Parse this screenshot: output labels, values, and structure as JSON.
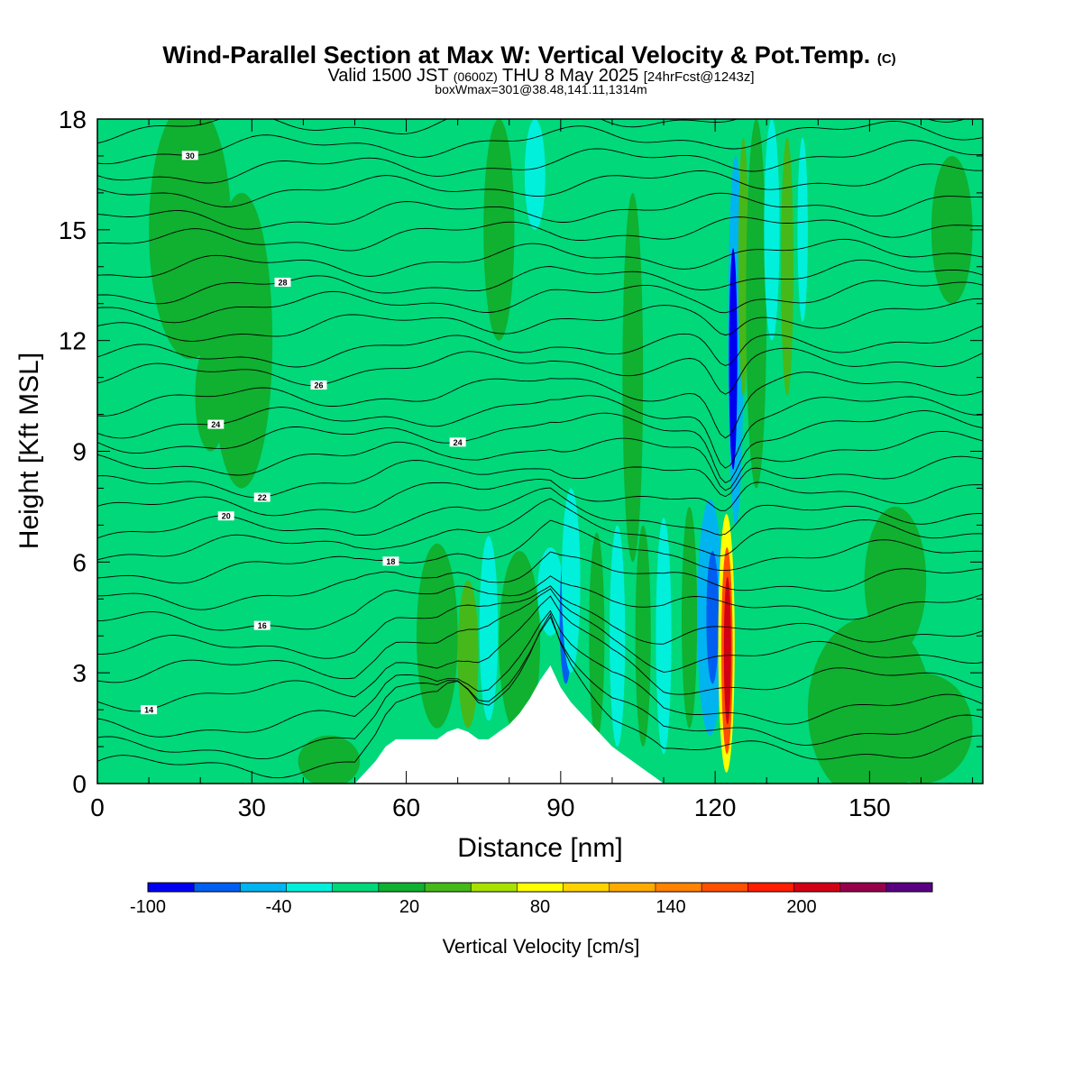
{
  "chart_data": {
    "type": "heatmap",
    "title": "Wind-Parallel Section at Max W: Vertical Velocity & Pot.Temp.",
    "title_mark": "(C)",
    "subtitle_parts": [
      "Valid 1500 JST",
      "(0600Z)",
      "THU 8 May 2025",
      "[24hrFcst@1243z]"
    ],
    "subtitle2": "boxWmax=301@38.48,141.11,1314m",
    "xlabel": "Distance [nm]",
    "ylabel": "Height [Kft MSL]",
    "xlim": [
      0,
      172
    ],
    "ylim": [
      0,
      18
    ],
    "x_ticks": [
      "0",
      "30",
      "60",
      "90",
      "120",
      "150"
    ],
    "x_tick_values": [
      0,
      30,
      60,
      90,
      120,
      150
    ],
    "y_ticks": [
      "0",
      "3",
      "6",
      "9",
      "12",
      "15",
      "18"
    ],
    "y_tick_values": [
      0,
      3,
      6,
      9,
      12,
      15,
      18
    ],
    "colorbar": {
      "title": "Vertical Velocity [cm/s]",
      "labels": [
        "-100",
        "-40",
        "20",
        "80",
        "140",
        "200"
      ],
      "label_values": [
        -100,
        -40,
        20,
        80,
        140,
        200
      ],
      "range": [
        -100,
        260
      ],
      "colors": [
        "#0000f0",
        "#005ff0",
        "#00b4f0",
        "#00f0dc",
        "#00d87a",
        "#10b030",
        "#46b81a",
        "#a8e000",
        "#ffff00",
        "#ffd200",
        "#ffaa00",
        "#ff8200",
        "#ff5000",
        "#ff1e00",
        "#d20014",
        "#96004b",
        "#5a0082"
      ]
    },
    "background_color": "#00d87a",
    "terrain": {
      "x": [
        0,
        50,
        52,
        54,
        56,
        58,
        60,
        62,
        64,
        66,
        68,
        70,
        72,
        74,
        76,
        78,
        80,
        82,
        84,
        86,
        88,
        90,
        92,
        94,
        96,
        98,
        100,
        102,
        104,
        106,
        108,
        110,
        172
      ],
      "h": [
        0.0,
        0.0,
        0.3,
        0.6,
        1.0,
        1.2,
        1.2,
        1.2,
        1.2,
        1.2,
        1.4,
        1.5,
        1.4,
        1.2,
        1.2,
        1.4,
        1.6,
        1.9,
        2.3,
        2.8,
        3.2,
        2.6,
        2.2,
        1.9,
        1.6,
        1.3,
        1.0,
        0.8,
        0.6,
        0.4,
        0.2,
        0.0,
        0.0
      ]
    },
    "wfields": [
      {
        "x": 18,
        "y": 15.0,
        "rx": 8,
        "ry": 3.5,
        "w": 10
      },
      {
        "x": 28,
        "y": 12.0,
        "rx": 6,
        "ry": 4.0,
        "w": 10
      },
      {
        "x": 22,
        "y": 10.5,
        "rx": 3,
        "ry": 1.5,
        "w": 10
      },
      {
        "x": 78,
        "y": 15.0,
        "rx": 3,
        "ry": 3.0,
        "w": 10
      },
      {
        "x": 104,
        "y": 11.0,
        "rx": 2,
        "ry": 5.0,
        "w": 10
      },
      {
        "x": 66,
        "y": 4.0,
        "rx": 4,
        "ry": 2.5,
        "w": 12
      },
      {
        "x": 72,
        "y": 3.5,
        "rx": 2,
        "ry": 2.0,
        "w": 30
      },
      {
        "x": 82,
        "y": 3.8,
        "rx": 4,
        "ry": 2.5,
        "w": 15
      },
      {
        "x": 76,
        "y": 4.2,
        "rx": 1.8,
        "ry": 2.5,
        "w": -30
      },
      {
        "x": 88,
        "y": 5.2,
        "rx": 2.5,
        "ry": 1.2,
        "w": -25
      },
      {
        "x": 91,
        "y": 4.5,
        "rx": 1.2,
        "ry": 1.8,
        "w": -60
      },
      {
        "x": 92,
        "y": 5.5,
        "rx": 1.8,
        "ry": 2.5,
        "w": -30
      },
      {
        "x": 97,
        "y": 4.0,
        "rx": 1.5,
        "ry": 2.8,
        "w": 15
      },
      {
        "x": 101,
        "y": 4.0,
        "rx": 1.5,
        "ry": 3.0,
        "w": -25
      },
      {
        "x": 106,
        "y": 4.0,
        "rx": 1.5,
        "ry": 3.0,
        "w": 15
      },
      {
        "x": 110,
        "y": 4.0,
        "rx": 1.5,
        "ry": 3.2,
        "w": -25
      },
      {
        "x": 115,
        "y": 4.5,
        "rx": 1.5,
        "ry": 3.0,
        "w": 15
      },
      {
        "x": 119,
        "y": 4.5,
        "rx": 2.5,
        "ry": 3.2,
        "w": -40
      },
      {
        "x": 119.5,
        "y": 4.5,
        "rx": 1.2,
        "ry": 1.8,
        "w": -70
      },
      {
        "x": 122.2,
        "y": 3.8,
        "rx": 1.6,
        "ry": 3.5,
        "w": 90
      },
      {
        "x": 122.3,
        "y": 3.6,
        "rx": 1.1,
        "ry": 2.8,
        "w": 160
      },
      {
        "x": 122.4,
        "y": 3.6,
        "rx": 0.7,
        "ry": 2.0,
        "w": 200
      },
      {
        "x": 124,
        "y": 12.0,
        "rx": 1.5,
        "ry": 5.0,
        "w": -40
      },
      {
        "x": 123.5,
        "y": 11.5,
        "rx": 0.8,
        "ry": 3.0,
        "w": -90
      },
      {
        "x": 125.5,
        "y": 14.0,
        "rx": 1.0,
        "ry": 3.5,
        "w": 40
      },
      {
        "x": 128,
        "y": 13.0,
        "rx": 2.0,
        "ry": 5.0,
        "w": 12
      },
      {
        "x": 131,
        "y": 15.0,
        "rx": 1.5,
        "ry": 3.0,
        "w": -30
      },
      {
        "x": 134,
        "y": 14.0,
        "rx": 1.2,
        "ry": 3.5,
        "w": 40
      },
      {
        "x": 137,
        "y": 15.0,
        "rx": 1.0,
        "ry": 2.5,
        "w": -30
      },
      {
        "x": 150,
        "y": 2.0,
        "rx": 12,
        "ry": 2.5,
        "w": 10
      },
      {
        "x": 160,
        "y": 1.5,
        "rx": 10,
        "ry": 1.5,
        "w": 12
      },
      {
        "x": 155,
        "y": 5.5,
        "rx": 6,
        "ry": 2.0,
        "w": 10
      },
      {
        "x": 166,
        "y": 15.0,
        "rx": 4,
        "ry": 2.0,
        "w": 10
      },
      {
        "x": 45,
        "y": 0.6,
        "rx": 6,
        "ry": 0.7,
        "w": 10
      },
      {
        "x": 85,
        "y": 16.5,
        "rx": 2,
        "ry": 1.5,
        "w": -30
      }
    ],
    "isentropes": [
      {
        "base": 0.4,
        "label": null
      },
      {
        "base": 0.9,
        "label": null
      },
      {
        "base": 1.5,
        "label": null
      },
      {
        "base": 2.3,
        "label": "14",
        "lx": 10
      },
      {
        "base": 3.0,
        "label": null
      },
      {
        "base": 3.6,
        "label": null
      },
      {
        "base": 4.3,
        "label": "16",
        "lx": 32
      },
      {
        "base": 5.0,
        "label": null
      },
      {
        "base": 5.7,
        "label": "18",
        "lx": 57
      },
      {
        "base": 6.3,
        "label": null
      },
      {
        "base": 6.8,
        "label": "20",
        "lx": 25
      },
      {
        "base": 7.4,
        "label": null
      },
      {
        "base": 8.0,
        "label": "22",
        "lx": 32
      },
      {
        "base": 8.6,
        "label": null
      },
      {
        "base": 9.2,
        "label": "24",
        "lx": 70
      },
      {
        "base": 9.7,
        "label": "24",
        "lx": 23
      },
      {
        "base": 10.3,
        "label": null
      },
      {
        "base": 11.0,
        "label": "26",
        "lx": 43
      },
      {
        "base": 11.5,
        "label": null
      },
      {
        "base": 12.2,
        "label": null
      },
      {
        "base": 12.8,
        "label": null
      },
      {
        "base": 13.3,
        "label": "28",
        "lx": 36
      },
      {
        "base": 13.9,
        "label": null
      },
      {
        "base": 14.6,
        "label": null
      },
      {
        "base": 15.2,
        "label": null
      },
      {
        "base": 15.9,
        "label": null
      },
      {
        "base": 16.5,
        "label": null
      },
      {
        "base": 17.1,
        "label": "30",
        "lx": 18
      },
      {
        "base": 17.7,
        "label": null
      }
    ]
  }
}
